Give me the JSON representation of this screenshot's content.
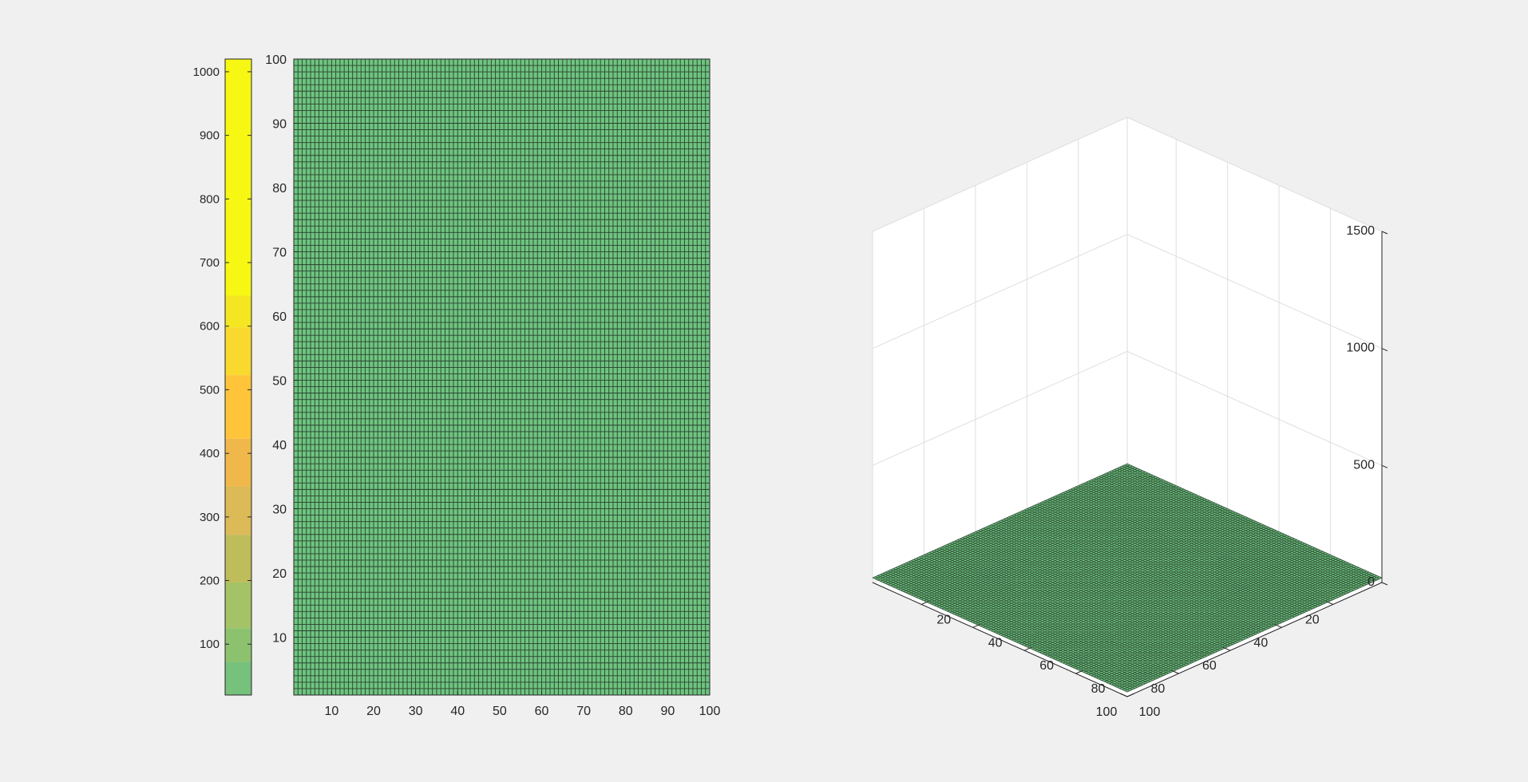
{
  "chart_data": [
    {
      "type": "heatmap",
      "x": {
        "lim": [
          1,
          100
        ],
        "ticks": [
          10,
          20,
          30,
          40,
          50,
          60,
          70,
          80,
          90,
          100
        ]
      },
      "y": {
        "lim": [
          1,
          100
        ],
        "ticks": [
          10,
          20,
          30,
          40,
          50,
          60,
          70,
          80,
          90,
          100
        ]
      },
      "grid_size": 100,
      "value": 20,
      "face_color": "#6ec47f",
      "edge_color": "#1e2a22",
      "colorbar": {
        "lim": [
          20,
          1020
        ],
        "ticks": [
          100,
          200,
          300,
          400,
          500,
          600,
          700,
          800,
          900,
          1000
        ],
        "bands": [
          {
            "from": 20,
            "to": 72,
            "color": "#76c17c"
          },
          {
            "from": 72,
            "to": 125,
            "color": "#8cc26e"
          },
          {
            "from": 125,
            "to": 197,
            "color": "#a4c266"
          },
          {
            "from": 197,
            "to": 272,
            "color": "#bfbc5c"
          },
          {
            "from": 272,
            "to": 348,
            "color": "#dbba57"
          },
          {
            "from": 348,
            "to": 423,
            "color": "#f0b84b"
          },
          {
            "from": 423,
            "to": 523,
            "color": "#ffc43a"
          },
          {
            "from": 523,
            "to": 598,
            "color": "#f9d92e"
          },
          {
            "from": 598,
            "to": 648,
            "color": "#f4e620"
          },
          {
            "from": 648,
            "to": 1020,
            "color": "#f7f714"
          }
        ]
      }
    },
    {
      "type": "surface",
      "x": {
        "lim": [
          1,
          100
        ],
        "ticks": [
          20,
          40,
          60,
          80,
          100
        ]
      },
      "y": {
        "lim": [
          1,
          100
        ],
        "ticks": [
          20,
          40,
          60,
          80,
          100
        ]
      },
      "z": {
        "lim": [
          0,
          1500
        ],
        "ticks": [
          0,
          500,
          1000,
          1500
        ]
      },
      "grid": true,
      "grid_size": 100,
      "value": 20,
      "face_color": "#6ec47f",
      "edge_color": "#1e2a22"
    }
  ]
}
